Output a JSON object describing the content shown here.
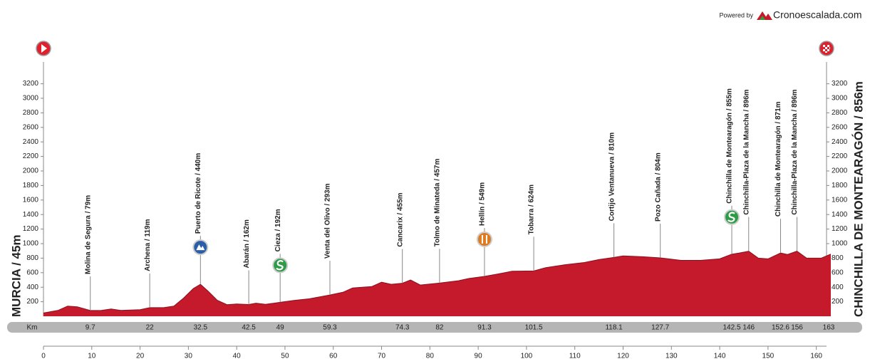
{
  "chart_data": {
    "type": "area",
    "color": "#c41a2b",
    "powered_by": "Powered by",
    "brand": "Cronoescalada.com",
    "start": "MURCIA / 45m",
    "finish": "CHINCHILLA DE MONTEARAGÓN / 856m",
    "km_label": "Km",
    "xlim": [
      0,
      163
    ],
    "ylim": [
      0,
      3500
    ],
    "xticks": [
      0,
      10,
      20,
      30,
      40,
      50,
      60,
      70,
      80,
      90,
      100,
      110,
      120,
      130,
      140,
      150,
      160
    ],
    "yticks": [
      200,
      400,
      600,
      800,
      1000,
      1200,
      1400,
      1600,
      1800,
      2000,
      2200,
      2400,
      2600,
      2800,
      3000,
      3200
    ],
    "x": [
      0,
      3,
      5,
      7,
      9.7,
      12,
      14,
      16,
      20,
      22,
      25,
      27,
      29,
      31,
      32.5,
      34,
      36,
      38,
      40,
      42.5,
      44,
      46,
      49,
      52,
      55,
      59.3,
      62,
      64,
      66,
      68,
      70,
      72,
      74.3,
      76,
      78,
      82,
      86,
      88,
      91.3,
      94,
      97,
      101.5,
      104,
      108,
      112,
      115,
      118.1,
      120,
      124,
      127.7,
      132,
      136,
      140,
      142.5,
      144,
      146,
      148,
      150,
      152.6,
      154,
      156,
      158,
      161,
      163
    ],
    "values": [
      45,
      80,
      140,
      130,
      79,
      80,
      100,
      80,
      90,
      119,
      120,
      140,
      250,
      380,
      440,
      350,
      220,
      160,
      170,
      162,
      180,
      165,
      192,
      220,
      240,
      293,
      330,
      390,
      400,
      410,
      470,
      440,
      455,
      500,
      430,
      457,
      490,
      520,
      549,
      580,
      620,
      624,
      670,
      710,
      740,
      780,
      810,
      830,
      820,
      804,
      770,
      770,
      790,
      855,
      870,
      896,
      800,
      790,
      871,
      850,
      896,
      800,
      800,
      856
    ],
    "waypoints": [
      {
        "km": 9.7,
        "elevation": 79,
        "label": "Molina de Segura / 79m"
      },
      {
        "km": 22,
        "elevation": 119,
        "label": "Archena / 119m"
      },
      {
        "km": 32.5,
        "elevation": 440,
        "label": "Puerto de Ricote / 440m",
        "icon": "climb"
      },
      {
        "km": 42.5,
        "elevation": 162,
        "label": "Abarán / 162m"
      },
      {
        "km": 49,
        "elevation": 192,
        "label": "Cieza / 192m",
        "icon": "sprint"
      },
      {
        "km": 59.3,
        "elevation": 293,
        "label": "Venta del Olivo / 293m"
      },
      {
        "km": 74.3,
        "elevation": 455,
        "label": "Cancarix / 455m"
      },
      {
        "km": 82,
        "elevation": 457,
        "label": "Tolmo de Minateda / 457m"
      },
      {
        "km": 91.3,
        "elevation": 549,
        "label": "Hellín / 549m",
        "icon": "feed"
      },
      {
        "km": 101.5,
        "elevation": 624,
        "label": "Tobarra / 624m"
      },
      {
        "km": 118.1,
        "elevation": 810,
        "label": "Cortijo Ventanueva / 810m"
      },
      {
        "km": 127.7,
        "elevation": 804,
        "label": "Pozo Cañada / 804m"
      },
      {
        "km": 142.5,
        "elevation": 855,
        "label": "Chinchilla de Montearagón / 855m",
        "icon": "sprint"
      },
      {
        "km": 146,
        "elevation": 896,
        "label": "Chinchilla-Plaza de la Mancha / 896m"
      },
      {
        "km": 152.6,
        "elevation": 871,
        "label": "Chinchilla de Montearagón / 871m"
      },
      {
        "km": 156,
        "elevation": 896,
        "label": "Chinchilla-Plaza de la Mancha / 896m"
      }
    ]
  }
}
